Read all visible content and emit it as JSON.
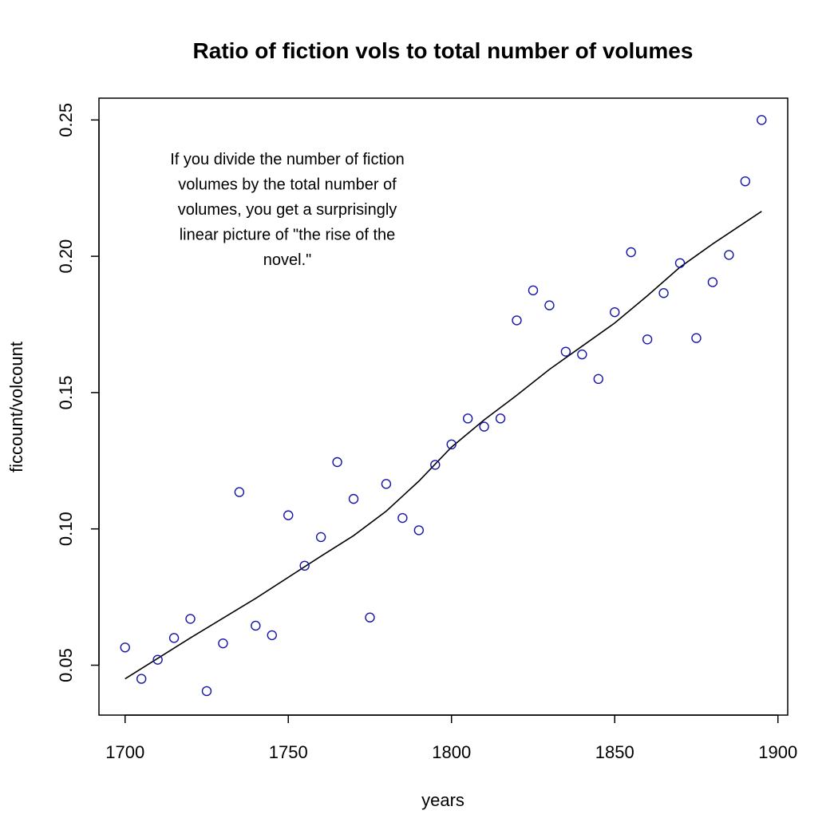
{
  "chart_data": {
    "type": "scatter",
    "title": "Ratio of fiction vols to total number of volumes",
    "xlabel": "years",
    "ylabel": "ficcount/volcount",
    "xlim": [
      1692,
      1903
    ],
    "ylim": [
      0.0317,
      0.258
    ],
    "xticks": [
      1700,
      1750,
      1800,
      1850,
      1900
    ],
    "xtick_labels": [
      "1700",
      "1750",
      "1800",
      "1850",
      "1900"
    ],
    "yticks": [
      0.05,
      0.1,
      0.15,
      0.2,
      0.25
    ],
    "ytick_labels": [
      "0.05",
      "0.10",
      "0.15",
      "0.20",
      "0.25"
    ],
    "grid": false,
    "point_color": "#1515a8",
    "line_color": "#000000",
    "annotation": [
      "If you divide the number of fiction",
      "volumes by the total number of",
      "volumes, you get a surprisingly",
      "linear picture of \"the rise of the",
      "novel.\""
    ],
    "series": [
      {
        "kind": "points",
        "x": [
          1700,
          1705,
          1710,
          1715,
          1720,
          1725,
          1730,
          1735,
          1740,
          1745,
          1750,
          1755,
          1760,
          1765,
          1770,
          1775,
          1780,
          1785,
          1790,
          1795,
          1800,
          1805,
          1810,
          1815,
          1820,
          1825,
          1830,
          1835,
          1840,
          1845,
          1850,
          1855,
          1860,
          1865,
          1870,
          1875,
          1880,
          1885,
          1890,
          1895
        ],
        "y": [
          0.0565,
          0.045,
          0.052,
          0.06,
          0.067,
          0.0405,
          0.058,
          0.1135,
          0.0645,
          0.061,
          0.105,
          0.0865,
          0.097,
          0.1245,
          0.111,
          0.0675,
          0.1165,
          0.104,
          0.0995,
          0.1235,
          0.131,
          0.1405,
          0.1375,
          0.1405,
          0.1765,
          0.1875,
          0.182,
          0.165,
          0.164,
          0.155,
          0.1795,
          0.2015,
          0.1695,
          0.1865,
          0.1975,
          0.17,
          0.1905,
          0.2005,
          0.2275,
          0.25
        ]
      },
      {
        "kind": "smooth-line",
        "x": [
          1700,
          1720,
          1740,
          1760,
          1770,
          1780,
          1790,
          1800,
          1810,
          1820,
          1830,
          1840,
          1850,
          1860,
          1870,
          1880,
          1895
        ],
        "y": [
          0.045,
          0.06,
          0.0745,
          0.09,
          0.0975,
          0.1065,
          0.1175,
          0.13,
          0.14,
          0.149,
          0.1585,
          0.167,
          0.1755,
          0.1855,
          0.196,
          0.2045,
          0.2165
        ]
      }
    ]
  }
}
